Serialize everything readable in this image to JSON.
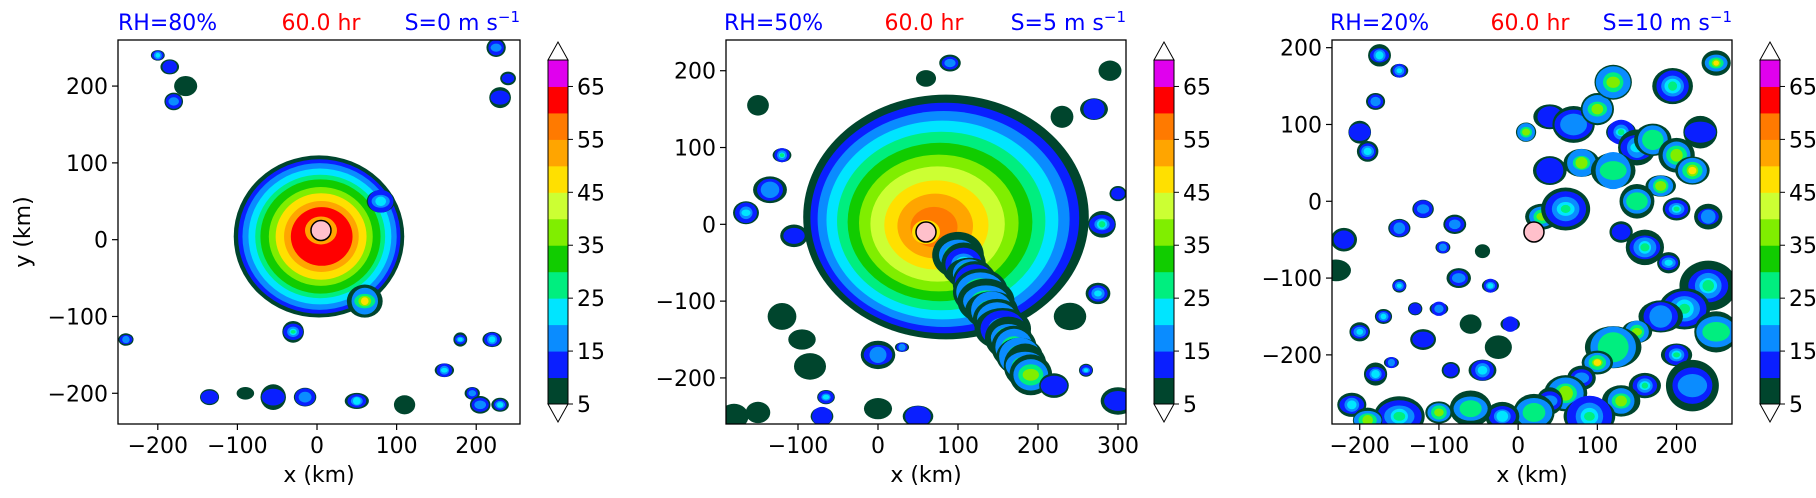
{
  "chart_data": [
    {
      "type": "heatmap",
      "title_left": "RH=80%",
      "title_center": "60.0 hr",
      "title_right": "S=0 m s",
      "title_right_sup": "−1",
      "xlabel": "x (km)",
      "ylabel": "y (km)",
      "xlim": [
        -250,
        255
      ],
      "ylim": [
        -240,
        260
      ],
      "xticks": [
        -200,
        -100,
        0,
        100,
        200
      ],
      "yticks": [
        -200,
        -100,
        0,
        100,
        200
      ],
      "xtick_labels": [
        "−200",
        "−100",
        "0",
        "100",
        "200"
      ],
      "ytick_labels": [
        "−200",
        "−100",
        "0",
        "100",
        "200"
      ],
      "center": [
        5,
        12
      ],
      "colorbar": {
        "levels": [
          5,
          10,
          15,
          20,
          25,
          30,
          35,
          40,
          45,
          50,
          55,
          60,
          65,
          70
        ],
        "labels": [
          "5",
          "15",
          "25",
          "35",
          "45",
          "55",
          "65"
        ]
      }
    },
    {
      "type": "heatmap",
      "title_left": "RH=50%",
      "title_center": "60.0 hr",
      "title_right": "S=5 m s",
      "title_right_sup": "−1",
      "xlabel": "x (km)",
      "ylabel": "",
      "xlim": [
        -190,
        310
      ],
      "ylim": [
        -260,
        240
      ],
      "xticks": [
        -100,
        0,
        100,
        200,
        300
      ],
      "yticks": [
        -200,
        -100,
        0,
        100,
        200
      ],
      "xtick_labels": [
        "−100",
        "0",
        "100",
        "200",
        "300"
      ],
      "ytick_labels": [
        "−200",
        "−100",
        "0",
        "100",
        "200"
      ],
      "center": [
        60,
        -10
      ],
      "colorbar": {
        "levels": [
          5,
          10,
          15,
          20,
          25,
          30,
          35,
          40,
          45,
          50,
          55,
          60,
          65,
          70
        ],
        "labels": [
          "5",
          "15",
          "25",
          "35",
          "45",
          "55",
          "65"
        ]
      }
    },
    {
      "type": "heatmap",
      "title_left": "RH=20%",
      "title_center": "60.0 hr",
      "title_right": "S=10 m s",
      "title_right_sup": "−1",
      "xlabel": "x (km)",
      "ylabel": "",
      "xlim": [
        -235,
        270
      ],
      "ylim": [
        -290,
        210
      ],
      "xticks": [
        -200,
        -100,
        0,
        100,
        200
      ],
      "yticks": [
        -200,
        -100,
        0,
        100,
        200
      ],
      "xtick_labels": [
        "−200",
        "−100",
        "0",
        "100",
        "200"
      ],
      "ytick_labels": [
        "−200",
        "−100",
        "0",
        "100",
        "200"
      ],
      "center": [
        20,
        -40
      ],
      "colorbar": {
        "levels": [
          5,
          10,
          15,
          20,
          25,
          30,
          35,
          40,
          45,
          50,
          55,
          60,
          65,
          70
        ],
        "labels": [
          "5",
          "15",
          "25",
          "35",
          "45",
          "55",
          "65"
        ]
      }
    }
  ],
  "colors": {
    "title_side": "#0000ff",
    "title_center": "#ff0000",
    "center_marker": "#ffc0cb",
    "levels": [
      "#00452d",
      "#0a1fff",
      "#0a8cff",
      "#00e5ff",
      "#00ee7f",
      "#11cc00",
      "#80ee00",
      "#ccff33",
      "#ffe000",
      "#ffa500",
      "#ff7a00",
      "#ff0000",
      "#e000ee",
      "#c060e0",
      "#f3c3f3"
    ]
  }
}
